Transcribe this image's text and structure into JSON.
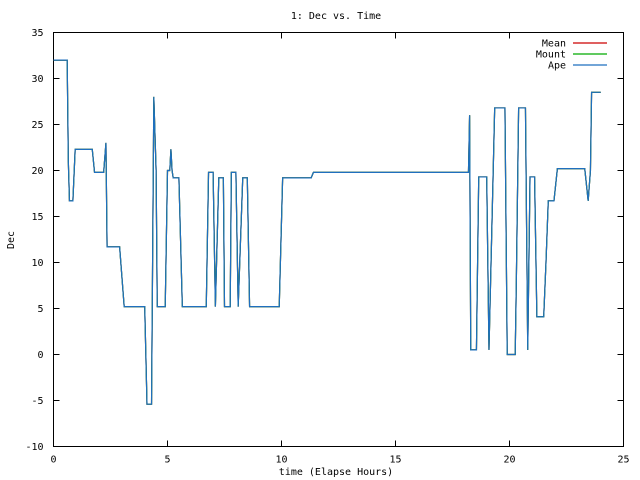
{
  "chart_data": {
    "type": "line",
    "title": "1: Dec vs. Time",
    "xlabel": "time (Elapse Hours)",
    "ylabel": "Dec",
    "xlim": [
      0,
      25
    ],
    "ylim": [
      -10,
      35
    ],
    "x_ticks": [
      0,
      5,
      10,
      15,
      20,
      25
    ],
    "y_ticks": [
      -10,
      -5,
      0,
      5,
      10,
      15,
      20,
      25,
      30,
      35
    ],
    "grid": false,
    "legend_position": "top-right",
    "series": [
      {
        "name": "Mean",
        "color": "#cc0000",
        "points": [
          [
            0,
            32
          ],
          [
            0.6,
            32
          ],
          [
            0.65,
            21
          ],
          [
            0.7,
            16.7
          ],
          [
            0.85,
            16.7
          ],
          [
            0.95,
            22.3
          ],
          [
            1.7,
            22.3
          ],
          [
            1.8,
            19.8
          ],
          [
            2.2,
            19.8
          ],
          [
            2.3,
            23
          ],
          [
            2.35,
            11.7
          ],
          [
            2.9,
            11.7
          ],
          [
            3.1,
            5.2
          ],
          [
            4.0,
            5.2
          ],
          [
            4.05,
            0
          ],
          [
            4.1,
            -5.4
          ],
          [
            4.3,
            -5.4
          ],
          [
            4.4,
            28
          ],
          [
            4.5,
            20
          ],
          [
            4.55,
            5.2
          ],
          [
            4.9,
            5.2
          ],
          [
            5.0,
            20
          ],
          [
            5.1,
            20
          ],
          [
            5.15,
            22.3
          ],
          [
            5.2,
            20
          ],
          [
            5.25,
            19.2
          ],
          [
            5.5,
            19.2
          ],
          [
            5.65,
            5.2
          ],
          [
            6.7,
            5.2
          ],
          [
            6.8,
            19.8
          ],
          [
            7.0,
            19.8
          ],
          [
            7.1,
            5.2
          ],
          [
            7.25,
            19.2
          ],
          [
            7.45,
            19.2
          ],
          [
            7.5,
            5.2
          ],
          [
            7.75,
            5.2
          ],
          [
            7.8,
            19.8
          ],
          [
            8.0,
            19.8
          ],
          [
            8.1,
            5.2
          ],
          [
            8.3,
            19.2
          ],
          [
            8.5,
            19.2
          ],
          [
            8.6,
            5.2
          ],
          [
            9.9,
            5.2
          ],
          [
            10.05,
            19.2
          ],
          [
            11.3,
            19.2
          ],
          [
            11.4,
            19.8
          ],
          [
            18.2,
            19.8
          ],
          [
            18.25,
            26
          ],
          [
            18.3,
            0.5
          ],
          [
            18.55,
            0.5
          ],
          [
            18.65,
            19.3
          ],
          [
            19.0,
            19.3
          ],
          [
            19.1,
            0.5
          ],
          [
            19.35,
            26.8
          ],
          [
            19.8,
            26.8
          ],
          [
            19.9,
            0
          ],
          [
            20.25,
            0
          ],
          [
            20.3,
            8
          ],
          [
            20.4,
            26.8
          ],
          [
            20.7,
            26.8
          ],
          [
            20.8,
            0.5
          ],
          [
            20.9,
            19.3
          ],
          [
            21.1,
            19.3
          ],
          [
            21.2,
            4.1
          ],
          [
            21.5,
            4.1
          ],
          [
            21.6,
            10
          ],
          [
            21.7,
            16.7
          ],
          [
            21.95,
            16.7
          ],
          [
            22.1,
            20.2
          ],
          [
            23.3,
            20.2
          ],
          [
            23.45,
            16.7
          ],
          [
            23.55,
            20
          ],
          [
            23.6,
            28.5
          ],
          [
            24.0,
            28.5
          ]
        ]
      },
      {
        "name": "Mount",
        "color": "#00aa00",
        "points": [
          [
            0,
            32
          ],
          [
            0.6,
            32
          ],
          [
            0.65,
            21
          ],
          [
            0.7,
            16.7
          ],
          [
            0.85,
            16.7
          ],
          [
            0.95,
            22.3
          ],
          [
            1.7,
            22.3
          ],
          [
            1.8,
            19.8
          ],
          [
            2.2,
            19.8
          ],
          [
            2.3,
            23
          ],
          [
            2.35,
            11.7
          ],
          [
            2.9,
            11.7
          ],
          [
            3.1,
            5.2
          ],
          [
            4.0,
            5.2
          ],
          [
            4.05,
            0
          ],
          [
            4.1,
            -5.4
          ],
          [
            4.3,
            -5.4
          ],
          [
            4.4,
            28
          ],
          [
            4.5,
            20
          ],
          [
            4.55,
            5.2
          ],
          [
            4.9,
            5.2
          ],
          [
            5.0,
            20
          ],
          [
            5.1,
            20
          ],
          [
            5.15,
            22.3
          ],
          [
            5.2,
            20
          ],
          [
            5.25,
            19.2
          ],
          [
            5.5,
            19.2
          ],
          [
            5.65,
            5.2
          ],
          [
            6.7,
            5.2
          ],
          [
            6.8,
            19.8
          ],
          [
            7.0,
            19.8
          ],
          [
            7.1,
            5.2
          ],
          [
            7.25,
            19.2
          ],
          [
            7.45,
            19.2
          ],
          [
            7.5,
            5.2
          ],
          [
            7.75,
            5.2
          ],
          [
            7.8,
            19.8
          ],
          [
            8.0,
            19.8
          ],
          [
            8.1,
            5.2
          ],
          [
            8.3,
            19.2
          ],
          [
            8.5,
            19.2
          ],
          [
            8.6,
            5.2
          ],
          [
            9.9,
            5.2
          ],
          [
            10.05,
            19.2
          ],
          [
            11.3,
            19.2
          ],
          [
            11.4,
            19.8
          ],
          [
            18.2,
            19.8
          ],
          [
            18.25,
            26
          ],
          [
            18.3,
            0.5
          ],
          [
            18.55,
            0.5
          ],
          [
            18.65,
            19.3
          ],
          [
            19.0,
            19.3
          ],
          [
            19.1,
            0.5
          ],
          [
            19.35,
            26.8
          ],
          [
            19.8,
            26.8
          ],
          [
            19.9,
            0
          ],
          [
            20.25,
            0
          ],
          [
            20.3,
            8
          ],
          [
            20.4,
            26.8
          ],
          [
            20.7,
            26.8
          ],
          [
            20.8,
            0.5
          ],
          [
            20.9,
            19.3
          ],
          [
            21.1,
            19.3
          ],
          [
            21.2,
            4.1
          ],
          [
            21.5,
            4.1
          ],
          [
            21.6,
            10
          ],
          [
            21.7,
            16.7
          ],
          [
            21.95,
            16.7
          ],
          [
            22.1,
            20.2
          ],
          [
            23.3,
            20.2
          ],
          [
            23.45,
            16.7
          ],
          [
            23.55,
            20
          ],
          [
            23.6,
            28.5
          ],
          [
            24.0,
            28.5
          ]
        ]
      },
      {
        "name": "Ape",
        "color": "#1f6fbf",
        "points": [
          [
            0,
            32
          ],
          [
            0.6,
            32
          ],
          [
            0.65,
            21
          ],
          [
            0.7,
            16.7
          ],
          [
            0.85,
            16.7
          ],
          [
            0.95,
            22.3
          ],
          [
            1.7,
            22.3
          ],
          [
            1.8,
            19.8
          ],
          [
            2.2,
            19.8
          ],
          [
            2.3,
            23
          ],
          [
            2.35,
            11.7
          ],
          [
            2.9,
            11.7
          ],
          [
            3.1,
            5.2
          ],
          [
            4.0,
            5.2
          ],
          [
            4.05,
            0
          ],
          [
            4.1,
            -5.4
          ],
          [
            4.3,
            -5.4
          ],
          [
            4.4,
            28
          ],
          [
            4.5,
            20
          ],
          [
            4.55,
            5.2
          ],
          [
            4.9,
            5.2
          ],
          [
            5.0,
            20
          ],
          [
            5.1,
            20
          ],
          [
            5.15,
            22.3
          ],
          [
            5.2,
            20
          ],
          [
            5.25,
            19.2
          ],
          [
            5.5,
            19.2
          ],
          [
            5.65,
            5.2
          ],
          [
            6.7,
            5.2
          ],
          [
            6.8,
            19.8
          ],
          [
            7.0,
            19.8
          ],
          [
            7.1,
            5.2
          ],
          [
            7.25,
            19.2
          ],
          [
            7.45,
            19.2
          ],
          [
            7.5,
            5.2
          ],
          [
            7.75,
            5.2
          ],
          [
            7.8,
            19.8
          ],
          [
            8.0,
            19.8
          ],
          [
            8.1,
            5.2
          ],
          [
            8.3,
            19.2
          ],
          [
            8.5,
            19.2
          ],
          [
            8.6,
            5.2
          ],
          [
            9.9,
            5.2
          ],
          [
            10.05,
            19.2
          ],
          [
            11.3,
            19.2
          ],
          [
            11.4,
            19.8
          ],
          [
            18.2,
            19.8
          ],
          [
            18.25,
            26
          ],
          [
            18.3,
            0.5
          ],
          [
            18.55,
            0.5
          ],
          [
            18.65,
            19.3
          ],
          [
            19.0,
            19.3
          ],
          [
            19.1,
            0.5
          ],
          [
            19.35,
            26.8
          ],
          [
            19.8,
            26.8
          ],
          [
            19.9,
            0
          ],
          [
            20.25,
            0
          ],
          [
            20.3,
            8
          ],
          [
            20.4,
            26.8
          ],
          [
            20.7,
            26.8
          ],
          [
            20.8,
            0.5
          ],
          [
            20.9,
            19.3
          ],
          [
            21.1,
            19.3
          ],
          [
            21.2,
            4.1
          ],
          [
            21.5,
            4.1
          ],
          [
            21.6,
            10
          ],
          [
            21.7,
            16.7
          ],
          [
            21.95,
            16.7
          ],
          [
            22.1,
            20.2
          ],
          [
            23.3,
            20.2
          ],
          [
            23.45,
            16.7
          ],
          [
            23.55,
            20
          ],
          [
            23.6,
            28.5
          ],
          [
            24.0,
            28.5
          ]
        ]
      }
    ]
  }
}
